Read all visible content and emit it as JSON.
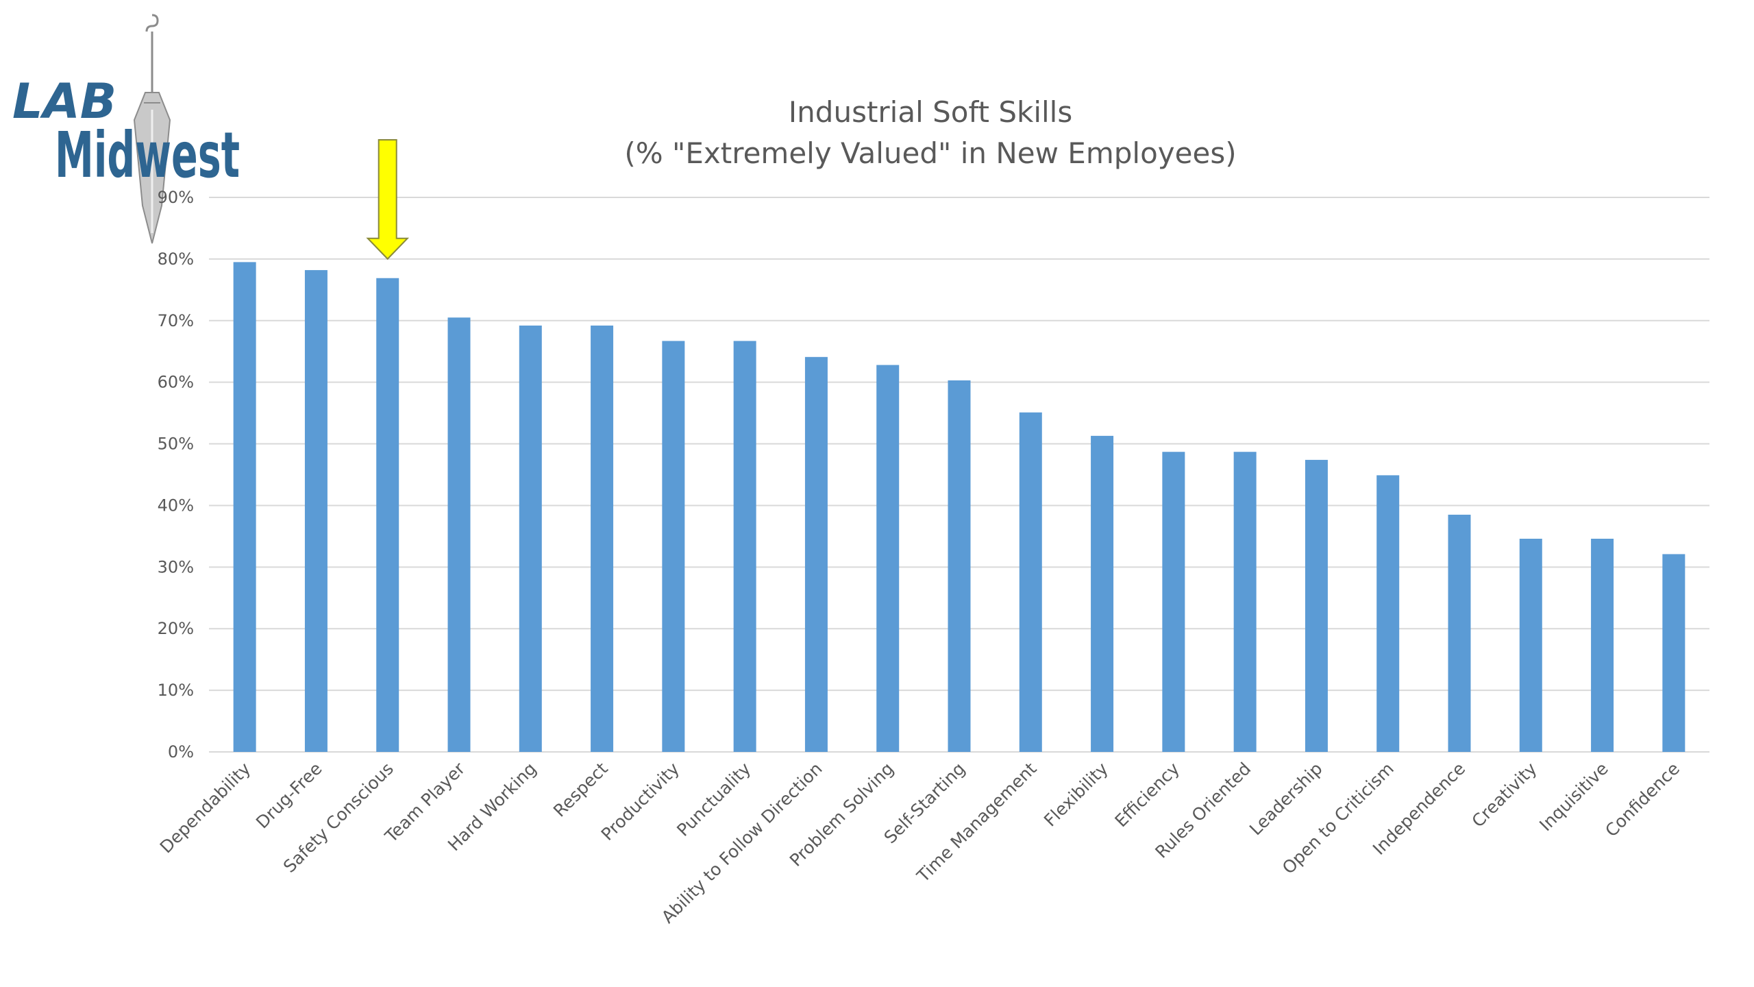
{
  "logo": {
    "line1": "LAB",
    "line2": "Midwest",
    "color": "#2e6591"
  },
  "highlight": {
    "category": "Safety Conscious",
    "color": "#ffff00",
    "outline": "#8a8a3a"
  },
  "chart_data": {
    "type": "bar",
    "title": "Industrial Soft Skills",
    "subtitle": "(% \"Extremely Valued\" in New Employees)",
    "xlabel": "",
    "ylabel": "",
    "ylim": [
      0,
      90
    ],
    "yticks": [
      0,
      10,
      20,
      30,
      40,
      50,
      60,
      70,
      80,
      90
    ],
    "ytick_labels": [
      "0%",
      "10%",
      "20%",
      "30%",
      "40%",
      "50%",
      "60%",
      "70%",
      "80%",
      "90%"
    ],
    "grid": true,
    "bar_color": "#5b9bd5",
    "categories": [
      "Dependability",
      "Drug-Free",
      "Safety Conscious",
      "Team Player",
      "Hard Working",
      "Respect",
      "Productivity",
      "Punctuality",
      "Ability to Follow Direction",
      "Problem Solving",
      "Self-Starting",
      "Time Management",
      "Flexibility",
      "Efficiency",
      "Rules Oriented",
      "Leadership",
      "Open to Criticism",
      "Independence",
      "Creativity",
      "Inquisitive",
      "Confidence"
    ],
    "values": [
      79.5,
      78.2,
      76.9,
      70.5,
      69.2,
      69.2,
      66.7,
      66.7,
      64.1,
      62.8,
      60.3,
      55.1,
      51.3,
      48.7,
      48.7,
      47.4,
      44.9,
      38.5,
      34.6,
      34.6,
      32.1
    ]
  }
}
